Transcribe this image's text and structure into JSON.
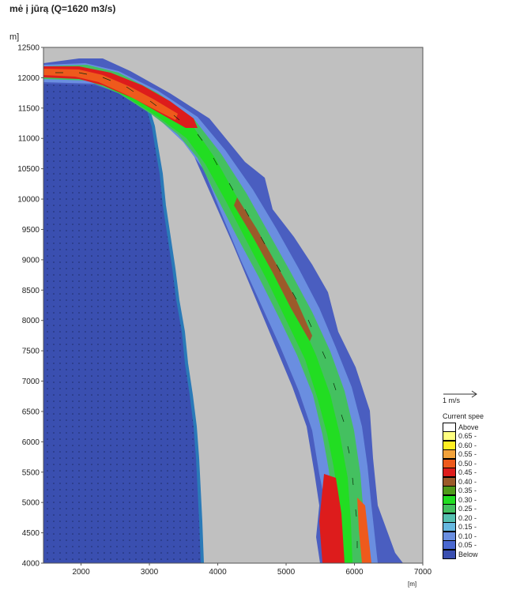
{
  "title": "mė į jūrą (Q=1620 m3/s)",
  "chart_data": {
    "type": "heatmap",
    "title": "mė į jūrą (Q=1620 m3/s)",
    "ylabel": "m]",
    "xlabel": "[m]",
    "xlim": [
      1450,
      7000
    ],
    "ylim": [
      4000,
      12500
    ],
    "x_ticks": [
      2000,
      3000,
      4000,
      5000,
      6000,
      7000
    ],
    "y_ticks": [
      4000,
      4500,
      5000,
      5500,
      6000,
      6500,
      7000,
      7500,
      8000,
      8500,
      9000,
      9500,
      10000,
      10500,
      11000,
      11500,
      12000,
      12500
    ],
    "x_tick_labels": [
      "2000",
      "3000",
      "4000",
      "5000",
      "6000",
      "7000"
    ],
    "y_tick_labels": [
      "4000",
      "4500",
      "5000",
      "5500",
      "6000",
      "6500",
      "7000",
      "7500",
      "8000",
      "8500",
      "9000",
      "9500",
      "10000",
      "10500",
      "11000",
      "11500",
      "12000",
      "12500"
    ],
    "background_color": "#c0c0c0",
    "sea_color": "#3a4fb0",
    "legend": {
      "arrow_label": "1 m/s",
      "title": "Current spee",
      "items": [
        {
          "label": "Above",
          "color": "#ffffff"
        },
        {
          "label": "0.65 -",
          "color": "#ffff80"
        },
        {
          "label": "0.60 -",
          "color": "#ffee22"
        },
        {
          "label": "0.55 -",
          "color": "#f3a23a"
        },
        {
          "label": "0.50 -",
          "color": "#ee5a1c"
        },
        {
          "label": "0.45 -",
          "color": "#dd1c1c"
        },
        {
          "label": "0.40 -",
          "color": "#9b5a2a"
        },
        {
          "label": "0.35 -",
          "color": "#4f9a1a"
        },
        {
          "label": "0.30 -",
          "color": "#22dd22"
        },
        {
          "label": "0.25 -",
          "color": "#44c060"
        },
        {
          "label": "0.20 -",
          "color": "#55c0b0"
        },
        {
          "label": "0.15 -",
          "color": "#66b8e0"
        },
        {
          "label": "0.10 -",
          "color": "#6a8ee0"
        },
        {
          "label": "0.05 -",
          "color": "#4a68d0"
        },
        {
          "label": "Below",
          "color": "#3a4fb0"
        }
      ]
    }
  }
}
